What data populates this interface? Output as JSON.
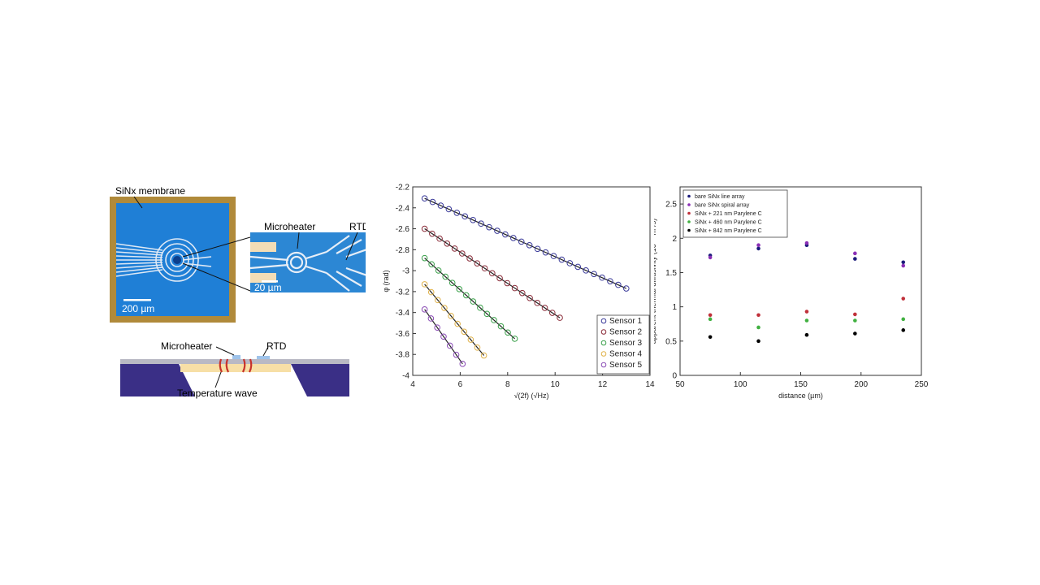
{
  "diagram": {
    "membrane_label": "SiNx membrane",
    "scale_200": "200 µm",
    "microheater_label": "Microheater",
    "rtd_label": "RTD",
    "scale_20": "20 µm",
    "cross_microheater_label": "Microheater",
    "cross_rtd_label": "RTD",
    "temperature_wave_label": "Temperature wave"
  },
  "chart_data": [
    {
      "type": "line",
      "xlabel": "√(2f) (√Hz)",
      "ylabel": "φ (rad)",
      "xlim": [
        4,
        14
      ],
      "ylim": [
        -4,
        -2.2
      ],
      "xticks": [
        "4",
        "6",
        "8",
        "10",
        "12",
        "14"
      ],
      "yticks": [
        "-2.2",
        "-2.4",
        "-2.6",
        "-2.8",
        "-3",
        "-3.2",
        "-3.4",
        "-3.6",
        "-3.8",
        "-4"
      ],
      "legend_position": "bottom-right",
      "series": [
        {
          "name": "Sensor 1",
          "color": "#3b3b9a",
          "x_start": 4.5,
          "x_end": 13.0,
          "y_start": -2.31,
          "y_end": -3.17,
          "n": 26
        },
        {
          "name": "Sensor 2",
          "color": "#8b2d3a",
          "x_start": 4.5,
          "x_end": 10.2,
          "y_start": -2.6,
          "y_end": -3.45,
          "n": 19
        },
        {
          "name": "Sensor 3",
          "color": "#3aa04a",
          "x_start": 4.5,
          "x_end": 8.3,
          "y_start": -2.88,
          "y_end": -3.65,
          "n": 14
        },
        {
          "name": "Sensor 4",
          "color": "#e0b24a",
          "x_start": 4.5,
          "x_end": 7.0,
          "y_start": -3.13,
          "y_end": -3.81,
          "n": 10
        },
        {
          "name": "Sensor 5",
          "color": "#8a4bb5",
          "x_start": 4.5,
          "x_end": 6.1,
          "y_start": -3.37,
          "y_end": -3.89,
          "n": 7
        }
      ]
    },
    {
      "type": "scatter",
      "xlabel": "distance (µm)",
      "ylabel": "apparent thermal diffusivity (10⁻⁶ m²/s)",
      "xlim": [
        50,
        250
      ],
      "ylim": [
        0,
        2.75
      ],
      "xticks": [
        "50",
        "100",
        "150",
        "200",
        "250"
      ],
      "yticks": [
        "0",
        "0.5",
        "1",
        "1.5",
        "2",
        "2.5"
      ],
      "legend_position": "top-left",
      "x": [
        75,
        115,
        155,
        195,
        235
      ],
      "series": [
        {
          "name": "bare SiNx line array",
          "color": "#1a1a7a",
          "values": [
            1.75,
            1.85,
            1.9,
            1.7,
            1.65
          ]
        },
        {
          "name": "bare SiNx spiral array",
          "color": "#8a2fb5",
          "values": [
            1.72,
            1.9,
            1.93,
            1.78,
            1.6
          ]
        },
        {
          "name": "SiNx + 221 nm Parylene C",
          "color": "#c0303a",
          "values": [
            0.88,
            0.88,
            0.93,
            0.89,
            1.12
          ]
        },
        {
          "name": "SiNx + 460 nm Parylene C",
          "color": "#40b040",
          "values": [
            0.82,
            0.7,
            0.8,
            0.8,
            0.82
          ]
        },
        {
          "name": "SiNx + 842 nm Parylene C",
          "color": "#000000",
          "values": [
            0.56,
            0.5,
            0.59,
            0.61,
            0.66
          ]
        }
      ]
    }
  ]
}
